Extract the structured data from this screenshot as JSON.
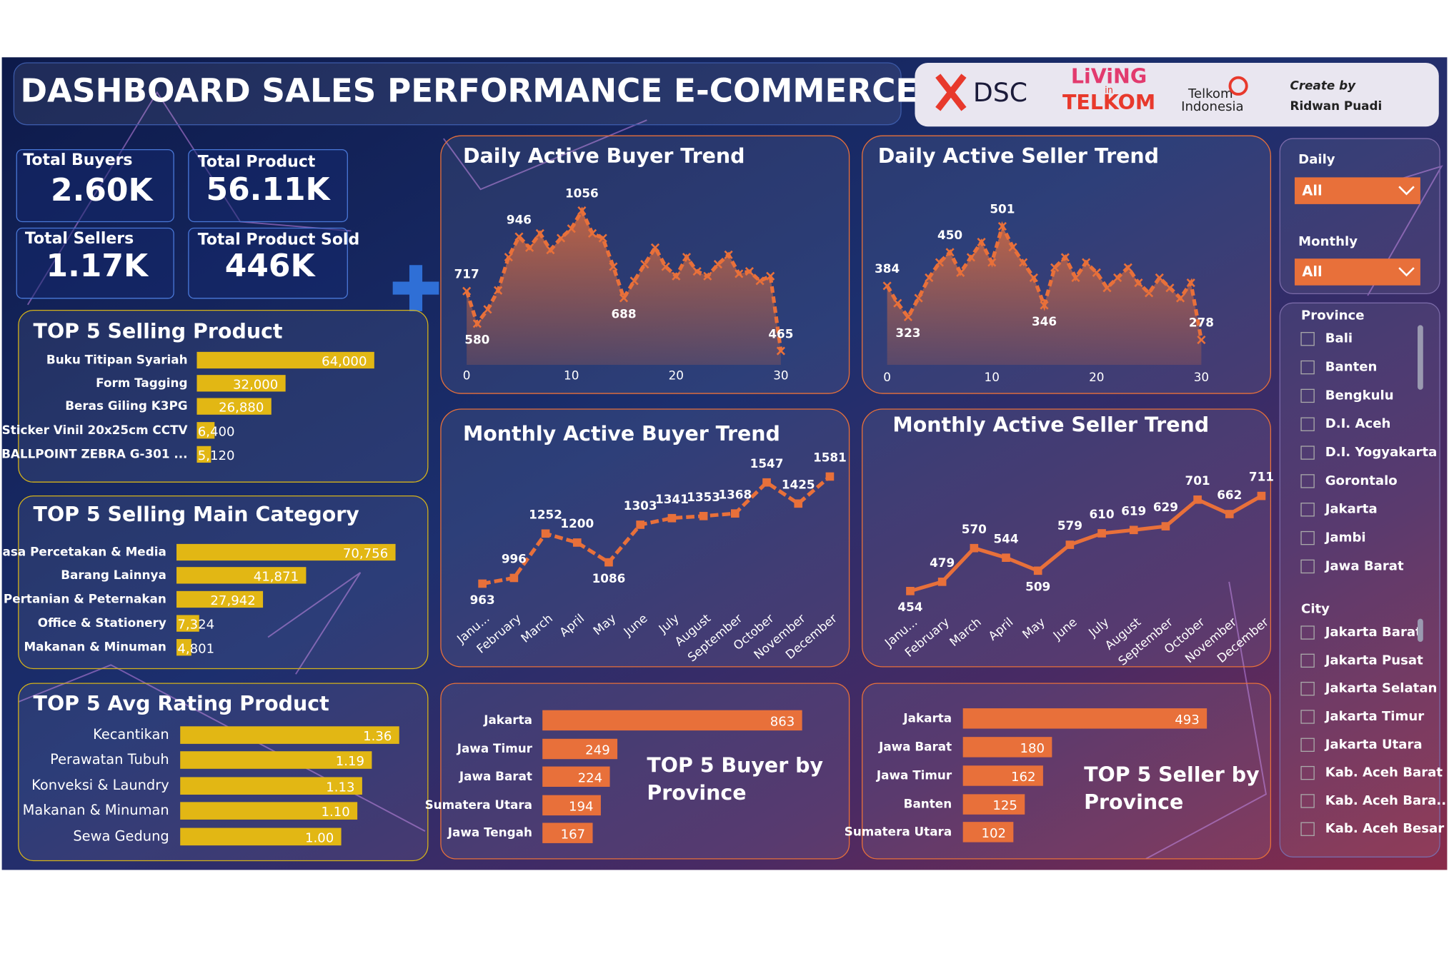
{
  "header": {
    "title": "DASHBOARD SALES PERFORMANCE E-COMMERCE",
    "logos": [
      "DSC",
      "LiViNG",
      "in",
      "TELKOM",
      "Telkom",
      "Indonesia"
    ],
    "credit": [
      "Create by",
      "Ridwan Puadi"
    ]
  },
  "kpis": [
    {
      "label": "Total Buyers",
      "value": "2.60K"
    },
    {
      "label": "Total Product",
      "value": "56.11K"
    },
    {
      "label": "Total Sellers",
      "value": "1.17K"
    },
    {
      "label": "Total Product Sold",
      "value": "446K"
    }
  ],
  "chart_data": [
    {
      "type": "area",
      "title": "Daily Active Buyer Trend",
      "color": "#e8703a",
      "xlim": [
        0,
        30
      ],
      "xticks": [
        0,
        10,
        20,
        30
      ],
      "x": [
        0,
        1,
        2,
        3,
        4,
        5,
        6,
        7,
        8,
        9,
        10,
        11,
        12,
        13,
        14,
        15,
        16,
        17,
        18,
        19,
        20,
        21,
        22,
        23,
        24,
        25,
        26,
        27,
        28,
        29,
        30
      ],
      "values": [
        717,
        580,
        640,
        720,
        860,
        946,
        900,
        960,
        890,
        940,
        980,
        1056,
        960,
        940,
        820,
        688,
        760,
        830,
        900,
        820,
        780,
        860,
        800,
        780,
        830,
        870,
        790,
        800,
        760,
        780,
        465
      ],
      "value_labels": [
        "717",
        "580",
        null,
        null,
        null,
        "946",
        null,
        null,
        null,
        null,
        null,
        "1056",
        null,
        null,
        null,
        "688",
        null,
        null,
        null,
        null,
        null,
        null,
        null,
        null,
        null,
        null,
        null,
        null,
        null,
        null,
        "465"
      ]
    },
    {
      "type": "area",
      "title": "Daily Active Seller Trend",
      "color": "#e8703a",
      "xlim": [
        0,
        30
      ],
      "xticks": [
        0,
        10,
        20,
        30
      ],
      "x": [
        0,
        1,
        2,
        3,
        4,
        5,
        6,
        7,
        8,
        9,
        10,
        11,
        12,
        13,
        14,
        15,
        16,
        17,
        18,
        19,
        20,
        21,
        22,
        23,
        24,
        25,
        26,
        27,
        28,
        29,
        30
      ],
      "values": [
        384,
        350,
        323,
        360,
        400,
        430,
        450,
        410,
        440,
        470,
        430,
        501,
        460,
        430,
        400,
        346,
        420,
        440,
        400,
        430,
        410,
        380,
        400,
        420,
        390,
        370,
        400,
        380,
        360,
        390,
        278
      ],
      "value_labels": [
        "384",
        null,
        "323",
        null,
        null,
        null,
        "450",
        null,
        null,
        null,
        null,
        "501",
        null,
        null,
        null,
        "346",
        null,
        null,
        null,
        null,
        null,
        null,
        null,
        null,
        null,
        null,
        null,
        null,
        null,
        null,
        "278"
      ]
    },
    {
      "type": "line",
      "title": "Monthly Active Buyer Trend",
      "color": "#e8703a",
      "line_style": "dashed",
      "categories": [
        "Janu...",
        "February",
        "March",
        "April",
        "May",
        "June",
        "July",
        "August",
        "September",
        "October",
        "November",
        "December"
      ],
      "values": [
        963,
        996,
        1252,
        1200,
        1086,
        1303,
        1341,
        1353,
        1368,
        1547,
        1425,
        1581
      ]
    },
    {
      "type": "line",
      "title": "Monthly Active Seller Trend",
      "color": "#e8703a",
      "line_style": "solid",
      "categories": [
        "Janu...",
        "February",
        "March",
        "April",
        "May",
        "June",
        "July",
        "August",
        "September",
        "October",
        "November",
        "December"
      ],
      "values": [
        454,
        479,
        570,
        544,
        509,
        579,
        610,
        619,
        629,
        701,
        662,
        711
      ]
    },
    {
      "type": "hbar",
      "title": "TOP 5 Selling Product",
      "color": "#e2b714",
      "categories": [
        "Buku Titipan Syariah",
        "Form Tagging",
        "Beras Giling K3PG",
        "Sticker Vinil 20x25cm CCTV",
        "BALLPOINT ZEBRA G-301 ..."
      ],
      "values": [
        64000,
        32000,
        26880,
        6400,
        5120
      ],
      "value_labels": [
        "64,000",
        "32,000",
        "26,880",
        "6,400",
        "5,120"
      ]
    },
    {
      "type": "hbar",
      "title": "TOP 5 Selling Main Category",
      "color": "#e2b714",
      "categories": [
        "Jasa Percetakan & Media",
        "Barang Lainnya",
        "Pertanian & Peternakan",
        "Office & Stationery",
        "Makanan & Minuman"
      ],
      "values": [
        70756,
        41871,
        27942,
        7324,
        4801
      ],
      "value_labels": [
        "70,756",
        "41,871",
        "27,942",
        "7,324",
        "4,801"
      ]
    },
    {
      "type": "hbar",
      "title": "TOP 5 Avg Rating Product",
      "color": "#e2b714",
      "categories": [
        "Kecantikan",
        "Perawatan Tubuh",
        "Konveksi & Laundry",
        "Makanan & Minuman",
        "Sewa Gedung"
      ],
      "values": [
        1.36,
        1.19,
        1.13,
        1.1,
        1.0
      ],
      "value_labels": [
        "1.36",
        "1.19",
        "1.13",
        "1.10",
        "1.00"
      ]
    },
    {
      "type": "hbar",
      "title": "TOP 5 Buyer by Province",
      "color": "#e8703a",
      "categories": [
        "Jakarta",
        "Jawa Timur",
        "Jawa Barat",
        "Sumatera Utara",
        "Jawa Tengah"
      ],
      "values": [
        863,
        249,
        224,
        194,
        167
      ]
    },
    {
      "type": "hbar",
      "title": "TOP 5 Seller by Province",
      "color": "#e8703a",
      "categories": [
        "Jakarta",
        "Jawa Barat",
        "Jawa Timur",
        "Banten",
        "Sumatera Utara"
      ],
      "values": [
        493,
        180,
        162,
        125,
        102
      ]
    }
  ],
  "filters": {
    "daily": {
      "label": "Daily",
      "value": "All"
    },
    "monthly": {
      "label": "Monthly",
      "value": "All"
    },
    "province": {
      "label": "Province",
      "options": [
        "Bali",
        "Banten",
        "Bengkulu",
        "D.I. Aceh",
        "D.I. Yogyakarta",
        "Gorontalo",
        "Jakarta",
        "Jambi",
        "Jawa Barat"
      ]
    },
    "city": {
      "label": "City",
      "options": [
        "Jakarta Barat",
        "Jakarta Pusat",
        "Jakarta Selatan",
        "Jakarta Timur",
        "Jakarta Utara",
        "Kab. Aceh Barat",
        "Kab. Aceh Bara...",
        "Kab. Aceh Besar"
      ]
    }
  }
}
